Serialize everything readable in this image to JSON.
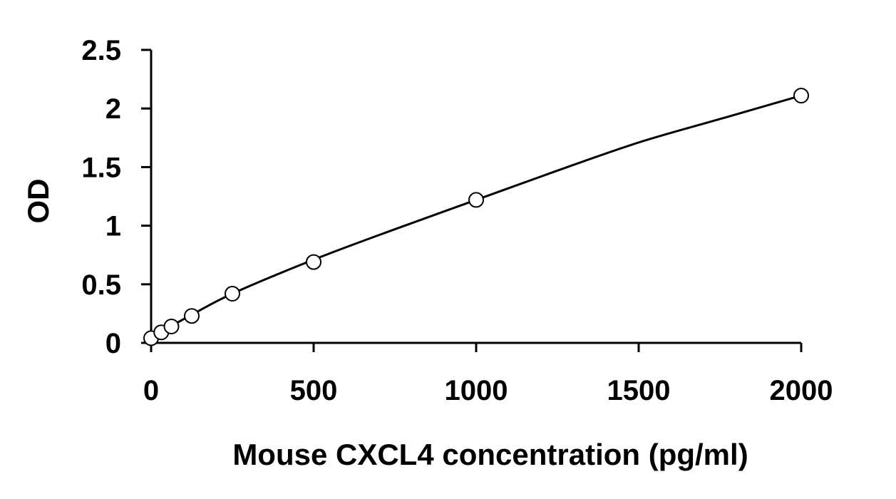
{
  "chart_data": {
    "type": "scatter",
    "title": "",
    "xlabel": "Mouse CXCL4 concentration (pg/ml)",
    "ylabel": "OD",
    "xlim": [
      0,
      2000
    ],
    "ylim": [
      0,
      2.5
    ],
    "xticks": [
      "0",
      "500",
      "1000",
      "1500",
      "2000"
    ],
    "yticks": [
      "0",
      "0.5",
      "1",
      "1.5",
      "2",
      "2.5"
    ],
    "grid": false,
    "legend": "none",
    "series": [
      {
        "marker": "open-circle",
        "x": [
          0,
          31.25,
          62.5,
          125,
          250,
          500,
          1000,
          2000
        ],
        "y": [
          0.04,
          0.09,
          0.14,
          0.23,
          0.42,
          0.69,
          1.22,
          2.11
        ]
      }
    ],
    "fit_curve": {
      "type": "smooth-fit",
      "x": [
        0,
        125,
        250,
        500,
        750,
        1000,
        1250,
        1500,
        1750,
        2000
      ],
      "y": [
        0.05,
        0.24,
        0.42,
        0.71,
        0.97,
        1.22,
        1.47,
        1.71,
        1.91,
        2.11
      ]
    },
    "colors": {
      "axis": "#000000",
      "marker_stroke": "#000000",
      "marker_fill": "#ffffff",
      "curve": "#000000"
    }
  }
}
